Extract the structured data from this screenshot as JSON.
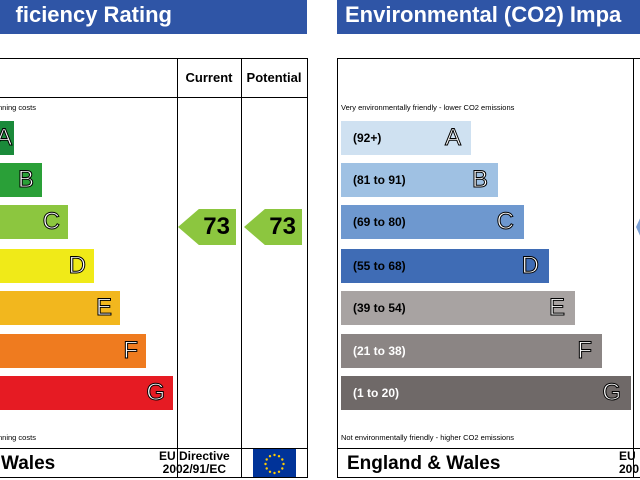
{
  "left": {
    "title": "ficiency Rating",
    "col_current": "Current",
    "col_potential": "Potential",
    "top_note": "nning costs",
    "bottom_note": "nning costs",
    "footer": "Wales",
    "directive_line1": "EU Directive",
    "directive_line2": "2002/91/EC",
    "current_value": "73",
    "potential_value": "73",
    "bands": [
      {
        "letter": "A",
        "color": "#1a8a3a"
      },
      {
        "letter": "B",
        "color": "#2aa038"
      },
      {
        "letter": "C",
        "color": "#8cc63f"
      },
      {
        "letter": "D",
        "color": "#f0ea18"
      },
      {
        "letter": "E",
        "color": "#f2b71e"
      },
      {
        "letter": "F",
        "color": "#ef7b1f"
      },
      {
        "letter": "G",
        "color": "#e61b23"
      }
    ]
  },
  "right": {
    "title": "Environmental (CO2) Impa",
    "top_note": "Very environmentally friendly - lower CO2 emissions",
    "bottom_note": "Not environmentally friendly - higher CO2 emissions",
    "footer": "England & Wales",
    "directive_line1": "EU",
    "directive_line2": "200",
    "bands": [
      {
        "letter": "A",
        "range": "(92+)",
        "color": "#cfe1f1",
        "text_color": "#000000"
      },
      {
        "letter": "B",
        "range": "(81 to 91)",
        "color": "#9fc1e3",
        "text_color": "#000000"
      },
      {
        "letter": "C",
        "range": "(69 to 80)",
        "color": "#6e98cf",
        "text_color": "#000000"
      },
      {
        "letter": "D",
        "range": "(55 to 68)",
        "color": "#3f6cb5",
        "text_color": "#000000"
      },
      {
        "letter": "E",
        "range": "(39 to 54)",
        "color": "#a8a3a2",
        "text_color": "#000000"
      },
      {
        "letter": "F",
        "range": "(21 to 38)",
        "color": "#8b8584",
        "text_color": "#ffffff"
      },
      {
        "letter": "G",
        "range": "(1 to 20)",
        "color": "#6f6968",
        "text_color": "#ffffff"
      }
    ]
  }
}
